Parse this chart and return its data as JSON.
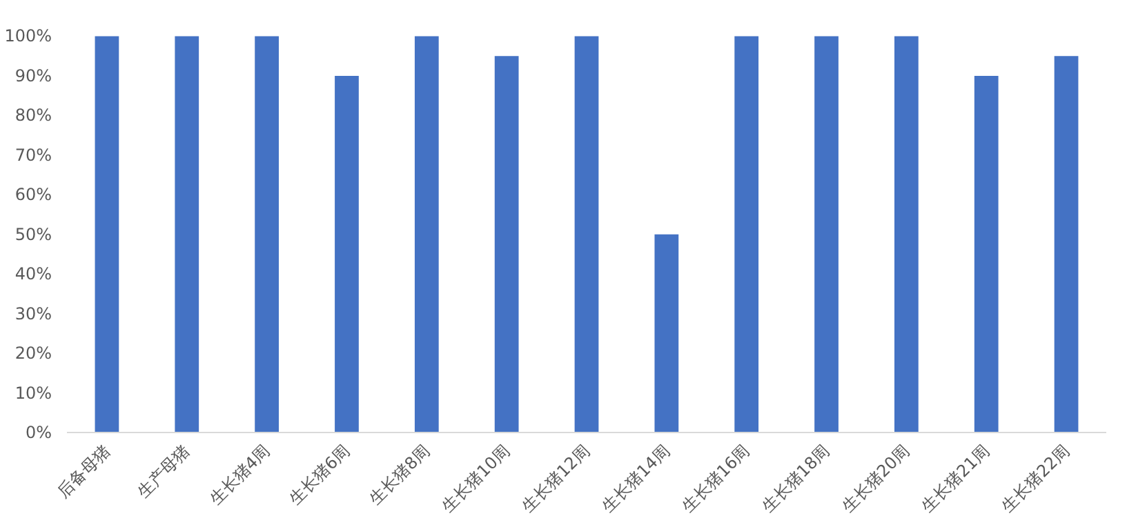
{
  "chart_data": {
    "type": "bar",
    "categories": [
      "后备母猪",
      "生产母猪",
      "生长猪4周",
      "生长猪6周",
      "生长猪8周",
      "生长猪10周",
      "生长猪12周",
      "生长猪14周",
      "生长猪16周",
      "生长猪18周",
      "生长猪20周",
      "生长猪21周",
      "生长猪22周"
    ],
    "values": [
      100,
      100,
      100,
      90,
      100,
      95,
      100,
      50,
      100,
      100,
      100,
      90,
      95
    ],
    "color": "#4472c4",
    "ylim": [
      0,
      100
    ],
    "yticks": [
      {
        "value": 0,
        "label": "0%"
      },
      {
        "value": 10,
        "label": "10%"
      },
      {
        "value": 20,
        "label": "20%"
      },
      {
        "value": 30,
        "label": "30%"
      },
      {
        "value": 40,
        "label": "40%"
      },
      {
        "value": 50,
        "label": "50%"
      },
      {
        "value": 60,
        "label": "60%"
      },
      {
        "value": 70,
        "label": "70%"
      },
      {
        "value": 80,
        "label": "80%"
      },
      {
        "value": 90,
        "label": "90%"
      },
      {
        "value": 100,
        "label": "100%"
      }
    ],
    "grid": false
  }
}
